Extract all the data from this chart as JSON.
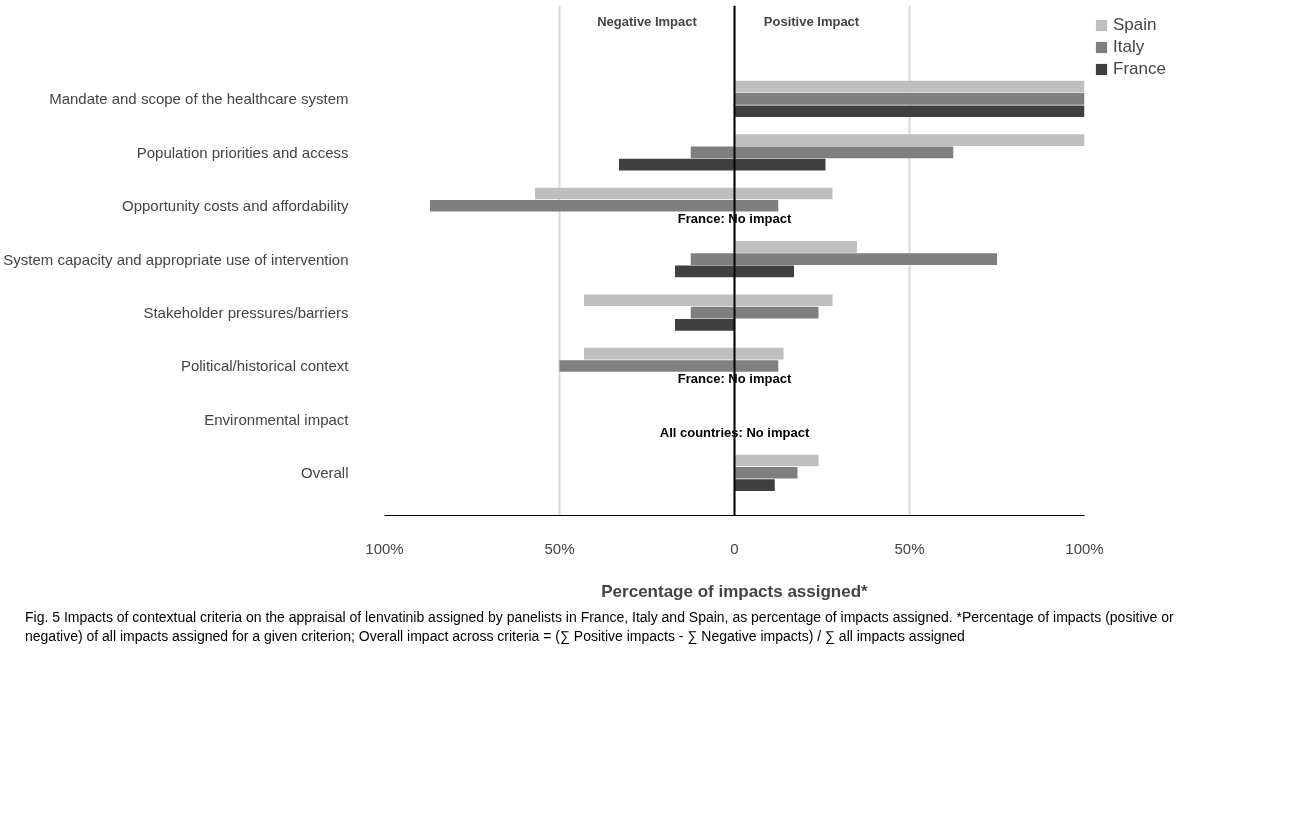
{
  "chart_data": {
    "type": "bar",
    "orientation": "horizontal",
    "xlabel": "Percentage of impacts assigned*",
    "categories": [
      "Mandate and scope of the healthcare system",
      "Population priorities and access",
      "Opportunity costs and affordability",
      "System capacity and appropriate use of intervention",
      "Stakeholder pressures/barriers",
      "Political/historical context",
      "Environmental impact",
      "Overall"
    ],
    "series": [
      {
        "name": "Spain",
        "color": "#bfbfbf",
        "base": [
          0,
          0,
          -57,
          0,
          -43,
          -43,
          null,
          0
        ],
        "values": [
          100,
          100,
          85,
          35,
          71,
          57,
          null,
          24
        ]
      },
      {
        "name": "Italy",
        "color": "#7f7f7f",
        "base": [
          0,
          -12.5,
          -87,
          -12.5,
          -12.5,
          -50,
          null,
          0
        ],
        "values": [
          100,
          75,
          99.5,
          87.5,
          36.5,
          62.5,
          null,
          18
        ]
      },
      {
        "name": "France",
        "color": "#404040",
        "base": [
          0,
          -33,
          null,
          -17,
          -17,
          null,
          null,
          0
        ],
        "values": [
          100,
          59,
          null,
          34,
          17,
          null,
          null,
          11.5
        ]
      }
    ],
    "xlim": [
      -100,
      100
    ],
    "xticks": [
      {
        "value": -100,
        "label": "100%"
      },
      {
        "value": -50,
        "label": "50%"
      },
      0,
      {
        "value": 50,
        "label": "50%"
      },
      {
        "value": 100,
        "label": "100%"
      }
    ],
    "grid": "x",
    "legend": "top right",
    "ref_lines": [
      {
        "axis": "x",
        "value": 0,
        "color": "#000000"
      }
    ],
    "annotations": [
      "Negative Impact",
      "Positive Impact",
      {
        "text": "France: No impact",
        "y": "Opportunity costs and affordability"
      },
      {
        "text": "France: No impact",
        "y": "Political/historical context"
      },
      {
        "text": "All countries: No impact",
        "y": "Environmental impact"
      },
      "Fig. 5 Impacts of contextual criteria on the appraisal of lenvatinib assigned by panelists in France, Italy and Spain, as percentage of impacts assigned. *Percentage of impacts (positive or negative) of all impacts assigned for a given criterion; Overall impact across criteria = (∑ Positive impacts - ∑ Negative impacts) / ∑ all impacts assigned"
    ]
  }
}
